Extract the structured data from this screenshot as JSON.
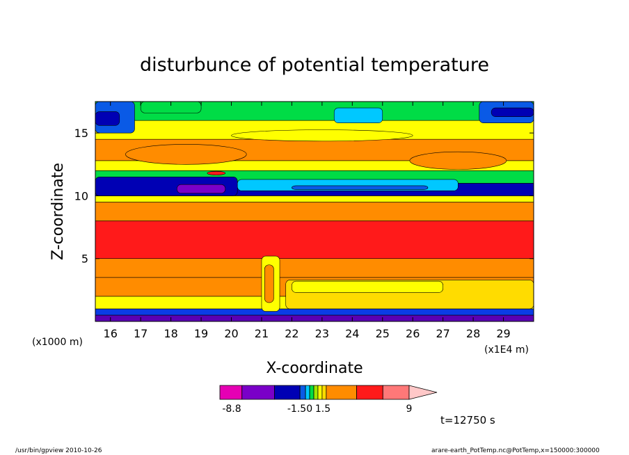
{
  "chart_data": {
    "type": "heatmap",
    "title": "disturbunce of potential temperature",
    "xlabel": "X-coordinate",
    "ylabel": "Z-coordinate",
    "x_unit_left": "(x1000 m)",
    "x_unit_right": "(x1E4 m)",
    "xlim": [
      15.5,
      30
    ],
    "ylim": [
      0,
      17.5
    ],
    "x_ticks": [
      16,
      17,
      18,
      19,
      20,
      21,
      22,
      23,
      24,
      25,
      26,
      27,
      28,
      29
    ],
    "y_ticks": [
      5,
      10,
      15
    ],
    "colorbar": {
      "labels": [
        "-8.8",
        "-1.50",
        "1.5",
        "9"
      ],
      "label_values": [
        -8.8,
        -1.5,
        1.5,
        9
      ],
      "colors": [
        "#e600b4",
        "#7a00c8",
        "#0000b4",
        "#0a5ae6",
        "#00c8ff",
        "#00dc46",
        "#a0e600",
        "#ffff00",
        "#ffdc00",
        "#ff8c00",
        "#ff1a1a",
        "#ff7878",
        "#ffc8c8"
      ]
    },
    "bands": [
      {
        "z0": 0.0,
        "z1": 0.5,
        "color": "#5a00b4"
      },
      {
        "z0": 0.5,
        "z1": 1.0,
        "color": "#0a3ce6"
      },
      {
        "z0": 1.0,
        "z1": 2.0,
        "color": "#ffff00"
      },
      {
        "z0": 2.0,
        "z1": 3.5,
        "color": "#ff8c00"
      },
      {
        "z0": 3.5,
        "z1": 5.0,
        "color": "#ff8c00"
      },
      {
        "z0": 5.0,
        "z1": 8.0,
        "color": "#ff1a1a"
      },
      {
        "z0": 8.0,
        "z1": 9.5,
        "color": "#ff8c00"
      },
      {
        "z0": 9.5,
        "z1": 10.0,
        "color": "#ffff00"
      },
      {
        "z0": 10.0,
        "z1": 11.0,
        "color": "#0000b4"
      },
      {
        "z0": 11.0,
        "z1": 12.0,
        "color": "#00dc46"
      },
      {
        "z0": 12.0,
        "z1": 12.8,
        "color": "#ffff00"
      },
      {
        "z0": 12.8,
        "z1": 14.5,
        "color": "#ff8c00"
      },
      {
        "z0": 14.5,
        "z1": 16.0,
        "color": "#ffff00"
      },
      {
        "z0": 16.0,
        "z1": 17.5,
        "color": "#00dc46"
      }
    ],
    "cells": [
      {
        "x0": 21.8,
        "x1": 30.0,
        "z0": 1.0,
        "z1": 3.3,
        "color": "#ffdc00"
      },
      {
        "x0": 22.0,
        "x1": 27.0,
        "z0": 2.3,
        "z1": 3.2,
        "color": "#ffff00"
      },
      {
        "x0": 15.5,
        "x1": 20.2,
        "z0": 10.0,
        "z1": 11.5,
        "color": "#0000b4"
      },
      {
        "x0": 18.2,
        "x1": 19.8,
        "z0": 10.2,
        "z1": 10.9,
        "color": "#7a00c8"
      },
      {
        "x0": 20.2,
        "x1": 27.5,
        "z0": 10.4,
        "z1": 11.3,
        "color": "#00c8ff"
      },
      {
        "x0": 22.0,
        "x1": 26.5,
        "z0": 10.5,
        "z1": 10.8,
        "color": "#0a5ae6"
      },
      {
        "x0": 15.5,
        "x1": 16.8,
        "z0": 15.0,
        "z1": 17.5,
        "color": "#0a5ae6"
      },
      {
        "x0": 15.5,
        "x1": 16.3,
        "z0": 15.6,
        "z1": 16.7,
        "color": "#0000b4"
      },
      {
        "x0": 28.2,
        "x1": 30.0,
        "z0": 15.8,
        "z1": 17.5,
        "color": "#0a5ae6"
      },
      {
        "x0": 28.6,
        "x1": 30.0,
        "z0": 16.3,
        "z1": 17.0,
        "color": "#0000b4"
      },
      {
        "x0": 17.0,
        "x1": 19.0,
        "z0": 16.6,
        "z1": 17.5,
        "color": "#00dc46"
      },
      {
        "x0": 23.4,
        "x1": 25.0,
        "z0": 15.8,
        "z1": 17.0,
        "color": "#00c8ff"
      },
      {
        "x0": 21.0,
        "x1": 21.6,
        "z0": 0.8,
        "z1": 5.2,
        "color": "#ffff00"
      },
      {
        "x0": 21.1,
        "x1": 21.4,
        "z0": 1.5,
        "z1": 4.5,
        "color": "#ff8c00"
      }
    ],
    "ellipses": [
      {
        "cx": 18.5,
        "cz": 13.3,
        "rx": 2.0,
        "rz": 0.8,
        "color": "#ff8c00"
      },
      {
        "cx": 27.5,
        "cz": 12.8,
        "rx": 1.6,
        "rz": 0.7,
        "color": "#ff8c00"
      },
      {
        "cx": 23.0,
        "cz": 14.8,
        "rx": 3.0,
        "rz": 0.45,
        "color": "#ffff00"
      },
      {
        "cx": 19.5,
        "cz": 11.8,
        "rx": 0.3,
        "rz": 0.15,
        "color": "#ff1a1a"
      }
    ]
  },
  "annotation_time": "t=12750 s",
  "footer_left": "/usr/bin/gpview   2010-10-26",
  "footer_right": "arare-earth_PotTemp.nc@PotTemp,x=150000:300000"
}
